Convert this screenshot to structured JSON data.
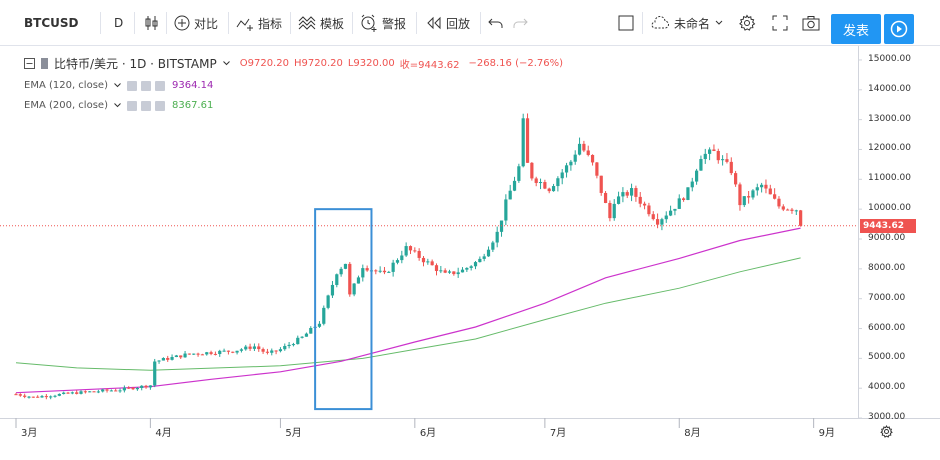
{
  "toolbar": {
    "symbol": "BTCUSD",
    "interval": "D",
    "compare_label": "对比",
    "indicators_label": "指标",
    "templates_label": "模板",
    "alert_label": "警报",
    "replay_label": "回放",
    "layout_name": "未命名",
    "publish_label": "发表"
  },
  "legend": {
    "title": "比特币/美元 · 1D · BITSTAMP",
    "open": "O9720.20",
    "high": "H9720.20",
    "low": "L9320.00",
    "close": "收=9443.62",
    "change": "−268.16 (−2.76%)"
  },
  "indicators": [
    {
      "label": "EMA (120, close)",
      "value": "9364.14",
      "color": "#9c27b0"
    },
    {
      "label": "EMA (200, close)",
      "value": "8367.61",
      "color": "#4caf50"
    }
  ],
  "colors": {
    "up": "#26a69a",
    "down": "#ef5350",
    "accent": "#2196f3",
    "ema120": "#cc33cc",
    "ema200": "#66bb6a",
    "price_line": "#ef5350",
    "highlight": "#3b8fd6"
  },
  "y_axis_labels": [
    "15000.00",
    "14000.00",
    "13000.00",
    "12000.00",
    "11000.00",
    "10000.00",
    "9000.00",
    "8000.00",
    "7000.00",
    "6000.00",
    "5000.00",
    "4000.00",
    "3000.00"
  ],
  "current_price": "9443.62",
  "x_axis_labels": [
    "3月",
    "4月",
    "5月",
    "6月",
    "7月",
    "8月",
    "9月"
  ],
  "chart_data": {
    "type": "candlestick",
    "title": "比特币/美元 · 1D · BITSTAMP",
    "ylim": [
      2700,
      15300
    ],
    "x_range": [
      "2019-03-01",
      "2019-09-14"
    ],
    "key_points": [
      [
        "2019-03-01",
        3800
      ],
      [
        "2019-03-05",
        3700
      ],
      [
        "2019-03-15",
        3850
      ],
      [
        "2019-03-25",
        3950
      ],
      [
        "2019-04-01",
        4100
      ],
      [
        "2019-04-02",
        4900
      ],
      [
        "2019-04-10",
        5150
      ],
      [
        "2019-04-20",
        5250
      ],
      [
        "2019-04-25",
        5400
      ],
      [
        "2019-04-28",
        5150
      ],
      [
        "2019-05-01",
        5300
      ],
      [
        "2019-05-06",
        5700
      ],
      [
        "2019-05-10",
        6200
      ],
      [
        "2019-05-14",
        7900
      ],
      [
        "2019-05-16",
        8200
      ],
      [
        "2019-05-17",
        7100
      ],
      [
        "2019-05-20",
        8100
      ],
      [
        "2019-05-25",
        7800
      ],
      [
        "2019-05-30",
        8700
      ],
      [
        "2019-06-04",
        8200
      ],
      [
        "2019-06-08",
        7800
      ],
      [
        "2019-06-12",
        7950
      ],
      [
        "2019-06-16",
        8300
      ],
      [
        "2019-06-20",
        9200
      ],
      [
        "2019-06-22",
        10200
      ],
      [
        "2019-06-25",
        11400
      ],
      [
        "2019-06-26",
        12900
      ],
      [
        "2019-06-27",
        11500
      ],
      [
        "2019-06-28",
        11100
      ],
      [
        "2019-07-02",
        10700
      ],
      [
        "2019-07-07",
        11600
      ],
      [
        "2019-07-09",
        12200
      ],
      [
        "2019-07-12",
        11500
      ],
      [
        "2019-07-16",
        9700
      ],
      [
        "2019-07-17",
        10300
      ],
      [
        "2019-07-21",
        10600
      ],
      [
        "2019-07-27",
        9600
      ],
      [
        "2019-07-31",
        10100
      ],
      [
        "2019-08-03",
        10600
      ],
      [
        "2019-08-06",
        11800
      ],
      [
        "2019-08-09",
        11900
      ],
      [
        "2019-08-13",
        11300
      ],
      [
        "2019-08-15",
        10200
      ],
      [
        "2019-08-20",
        10800
      ],
      [
        "2019-08-24",
        10100
      ],
      [
        "2019-08-28",
        10000
      ],
      [
        "2019-08-29",
        9443.62
      ]
    ],
    "ema120": [
      [
        "2019-03-01",
        3850
      ],
      [
        "2019-04-01",
        4050
      ],
      [
        "2019-04-15",
        4300
      ],
      [
        "2019-05-01",
        4550
      ],
      [
        "2019-05-15",
        4900
      ],
      [
        "2019-06-01",
        5550
      ],
      [
        "2019-06-15",
        6050
      ],
      [
        "2019-07-01",
        6850
      ],
      [
        "2019-07-15",
        7700
      ],
      [
        "2019-08-01",
        8350
      ],
      [
        "2019-08-15",
        8950
      ],
      [
        "2019-08-29",
        9364.14
      ]
    ],
    "ema200": [
      [
        "2019-03-01",
        4850
      ],
      [
        "2019-03-15",
        4680
      ],
      [
        "2019-04-01",
        4600
      ],
      [
        "2019-05-01",
        4750
      ],
      [
        "2019-05-20",
        5000
      ],
      [
        "2019-06-01",
        5300
      ],
      [
        "2019-06-15",
        5650
      ],
      [
        "2019-07-01",
        6300
      ],
      [
        "2019-07-15",
        6850
      ],
      [
        "2019-08-01",
        7350
      ],
      [
        "2019-08-15",
        7900
      ],
      [
        "2019-08-29",
        8367.61
      ]
    ],
    "highlight_range": {
      "x": [
        "2019-05-09",
        "2019-05-22"
      ],
      "y": [
        3300,
        10000
      ]
    }
  }
}
